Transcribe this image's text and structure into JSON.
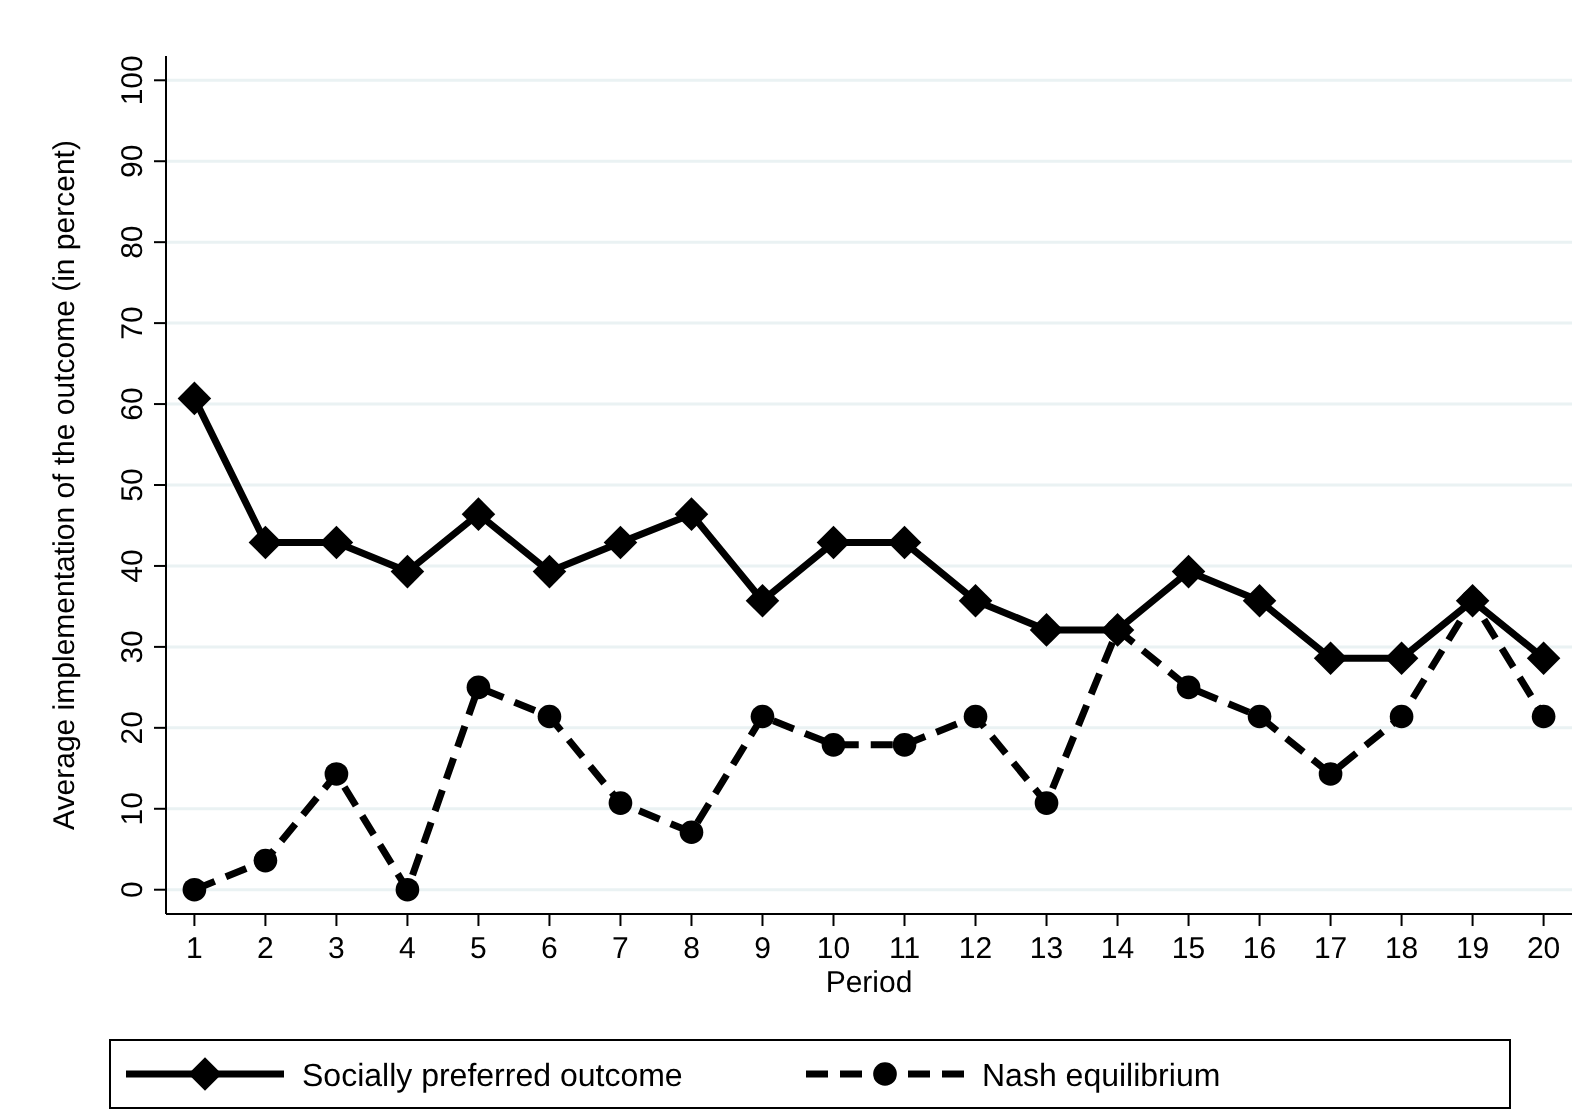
{
  "chart_data": {
    "type": "line",
    "xlabel": "Period",
    "ylabel": "Average implementation of the outcome (in percent)",
    "x": [
      1,
      2,
      3,
      4,
      5,
      6,
      7,
      8,
      9,
      10,
      11,
      12,
      13,
      14,
      15,
      16,
      17,
      18,
      19,
      20
    ],
    "series": [
      {
        "name": "Socially preferred outcome",
        "color": "#000000",
        "marker": "diamond",
        "line_style": "solid",
        "values": [
          60.7,
          42.9,
          42.9,
          39.3,
          46.4,
          39.3,
          42.9,
          46.4,
          35.7,
          42.9,
          42.9,
          35.7,
          32.1,
          32.1,
          39.3,
          35.7,
          28.6,
          28.6,
          35.7,
          28.6
        ]
      },
      {
        "name": "Nash equilibrium",
        "color": "#000000",
        "marker": "circle",
        "line_style": "dashed",
        "values": [
          0,
          3.6,
          14.3,
          0,
          25,
          21.4,
          10.7,
          7.1,
          21.4,
          17.9,
          17.9,
          21.4,
          10.7,
          32.1,
          25,
          21.4,
          14.3,
          21.4,
          35.7,
          21.4
        ]
      }
    ],
    "xlim": [
      0.6,
      20.4
    ],
    "ylim": [
      -3,
      103
    ],
    "xticks": [
      1,
      2,
      3,
      4,
      5,
      6,
      7,
      8,
      9,
      10,
      11,
      12,
      13,
      14,
      15,
      16,
      17,
      18,
      19,
      20
    ],
    "yticks": [
      0,
      10,
      20,
      30,
      40,
      50,
      60,
      70,
      80,
      90,
      100
    ],
    "grid": "y",
    "legend": "bottom"
  }
}
